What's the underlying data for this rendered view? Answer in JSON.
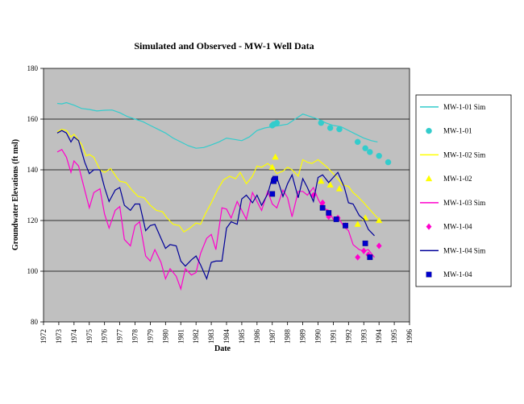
{
  "chart_data": {
    "type": "line",
    "title": "Simulated and Observed - MW-1 Well Data",
    "xlabel": "Date",
    "ylabel": "Groundwater Elevations (ft msl)",
    "xlim": [
      1972,
      1996
    ],
    "ylim": [
      80,
      180
    ],
    "xticks": [
      1972,
      1973,
      1974,
      1975,
      1976,
      1977,
      1978,
      1979,
      1980,
      1981,
      1982,
      1983,
      1984,
      1985,
      1986,
      1987,
      1988,
      1989,
      1990,
      1991,
      1992,
      1993,
      1994,
      1995,
      1996
    ],
    "yticks": [
      80,
      100,
      120,
      140,
      160,
      180
    ],
    "grid": true,
    "legend_position": "right",
    "plot_background": "#c0c0c0",
    "series": [
      {
        "name": "MW-1-01 Sim",
        "kind": "line",
        "color": "#33cccc",
        "x": [
          1972.9,
          1973.2,
          1973.5,
          1974.0,
          1974.5,
          1975.0,
          1975.5,
          1976.0,
          1976.5,
          1977.0,
          1977.5,
          1978.0,
          1978.5,
          1979.0,
          1979.5,
          1980.0,
          1980.5,
          1981.0,
          1981.5,
          1982.0,
          1982.5,
          1983.0,
          1983.5,
          1984.0,
          1984.5,
          1985.0,
          1985.5,
          1986.0,
          1986.5,
          1987.0,
          1987.5,
          1988.0,
          1988.5,
          1989.0,
          1989.5,
          1990.0,
          1990.5,
          1991.0,
          1991.5,
          1992.0,
          1992.5,
          1993.0,
          1993.5,
          1993.9
        ],
        "y": [
          166.2,
          166.0,
          166.5,
          165.5,
          164.2,
          163.8,
          163.2,
          163.5,
          163.6,
          162.5,
          161.0,
          160.0,
          159.0,
          157.5,
          156.0,
          154.5,
          152.5,
          151.0,
          149.5,
          148.5,
          148.8,
          149.8,
          151.0,
          152.5,
          152.0,
          151.5,
          153.0,
          155.5,
          156.5,
          157.0,
          157.5,
          158.0,
          160.0,
          162.0,
          161.0,
          160.0,
          158.5,
          157.5,
          157.0,
          155.5,
          154.0,
          152.5,
          151.5,
          151.0
        ]
      },
      {
        "name": "MW-1-01",
        "kind": "marker",
        "marker": "circle",
        "color": "#33cccc",
        "x": [
          1987.0,
          1987.1,
          1987.3,
          1990.2,
          1990.8,
          1991.4,
          1992.6,
          1993.1,
          1993.4,
          1994.0,
          1994.6
        ],
        "y": [
          157.5,
          158.0,
          158.5,
          158.5,
          156.5,
          156.0,
          151.0,
          148.5,
          147.0,
          145.5,
          143.0
        ]
      },
      {
        "name": "MW-1-02 Sim",
        "kind": "line",
        "color": "#ffff00",
        "x": [
          1972.9,
          1973.2,
          1973.5,
          1973.8,
          1974.0,
          1974.5,
          1974.8,
          1975.0,
          1975.3,
          1975.7,
          1976.0,
          1976.4,
          1976.8,
          1977.0,
          1977.4,
          1977.8,
          1978.2,
          1978.6,
          1979.0,
          1979.4,
          1979.8,
          1980.1,
          1980.5,
          1980.9,
          1981.2,
          1981.6,
          1982.0,
          1982.3,
          1982.6,
          1983.0,
          1983.4,
          1983.8,
          1984.2,
          1984.6,
          1984.9,
          1985.3,
          1985.7,
          1986.0,
          1986.3,
          1986.7,
          1987.0,
          1987.3,
          1987.7,
          1988.0,
          1988.3,
          1988.7,
          1989.0,
          1989.3,
          1989.6,
          1990.0,
          1990.3,
          1990.6,
          1991.0,
          1991.3,
          1991.6,
          1992.0,
          1992.3,
          1992.6,
          1993.0,
          1993.3,
          1993.6,
          1993.9
        ],
        "y": [
          155.0,
          156.0,
          155.5,
          153.0,
          154.0,
          150.0,
          145.5,
          146.0,
          145.0,
          140.0,
          139.0,
          140.5,
          137.0,
          135.5,
          135.0,
          132.0,
          129.5,
          129.0,
          126.0,
          124.0,
          123.5,
          121.0,
          118.5,
          118.0,
          115.5,
          117.0,
          119.0,
          118.5,
          122.5,
          127.0,
          132.0,
          136.0,
          137.5,
          136.5,
          139.0,
          134.5,
          137.5,
          141.5,
          141.0,
          142.5,
          141.0,
          138.5,
          139.5,
          141.0,
          140.0,
          137.5,
          144.0,
          143.0,
          142.5,
          144.0,
          142.5,
          141.0,
          138.5,
          136.5,
          134.0,
          133.5,
          131.0,
          129.5,
          127.0,
          125.0,
          123.0,
          121.0
        ]
      },
      {
        "name": "MW-1-02",
        "kind": "marker",
        "marker": "triangle",
        "color": "#ffff00",
        "x": [
          1987.0,
          1987.2,
          1990.2,
          1990.8,
          1991.4,
          1992.6,
          1993.1,
          1994.0
        ],
        "y": [
          141.0,
          145.0,
          135.5,
          134.0,
          132.5,
          118.5,
          121.0,
          120.0
        ]
      },
      {
        "name": "MW-1-03 Sim",
        "kind": "line",
        "color": "#ff00cc",
        "x": [
          1972.9,
          1973.2,
          1973.5,
          1973.8,
          1974.0,
          1974.3,
          1974.7,
          1975.0,
          1975.3,
          1975.7,
          1976.0,
          1976.3,
          1976.7,
          1977.0,
          1977.3,
          1977.7,
          1978.0,
          1978.3,
          1978.7,
          1979.0,
          1979.3,
          1979.7,
          1980.0,
          1980.3,
          1980.7,
          1981.0,
          1981.3,
          1981.7,
          1982.0,
          1982.3,
          1982.7,
          1983.0,
          1983.3,
          1983.7,
          1984.0,
          1984.3,
          1984.7,
          1985.0,
          1985.3,
          1985.7,
          1986.0,
          1986.3,
          1986.7,
          1987.0,
          1987.3,
          1987.7,
          1988.0,
          1988.3,
          1988.7,
          1989.0,
          1989.3,
          1989.7,
          1990.0,
          1990.3,
          1990.7,
          1991.0,
          1991.3,
          1991.7,
          1992.0,
          1992.3,
          1992.7,
          1993.0,
          1993.3,
          1993.7
        ],
        "y": [
          147.0,
          148.0,
          145.0,
          139.0,
          143.5,
          141.5,
          132.0,
          125.0,
          131.0,
          132.5,
          122.5,
          117.0,
          124.0,
          125.5,
          112.5,
          110.0,
          118.0,
          119.5,
          106.0,
          104.0,
          108.5,
          103.5,
          97.0,
          101.0,
          98.0,
          93.0,
          101.0,
          98.5,
          99.5,
          107.0,
          113.0,
          114.5,
          108.5,
          125.0,
          124.5,
          121.0,
          127.5,
          124.0,
          120.5,
          131.0,
          127.5,
          124.0,
          131.5,
          126.5,
          125.0,
          132.0,
          129.0,
          121.5,
          131.5,
          131.5,
          130.0,
          133.0,
          128.5,
          125.0,
          124.0,
          120.5,
          121.5,
          117.5,
          116.0,
          110.5,
          108.5,
          108.0,
          108.5,
          105.5
        ]
      },
      {
        "name": "MW-1-04",
        "kind": "marker",
        "marker": "diamond",
        "color": "#ff00cc",
        "x": [
          1989.7,
          1990.3,
          1990.7,
          1991.3,
          1991.8,
          1992.6,
          1993.0,
          1993.3,
          1994.0
        ],
        "y": [
          130.0,
          127.0,
          121.5,
          121.0,
          118.0,
          105.5,
          108.0,
          106.5,
          110.0
        ]
      },
      {
        "name": "MW-1-04 Sim",
        "kind": "line",
        "color": "#000099",
        "x": [
          1972.9,
          1973.2,
          1973.5,
          1973.8,
          1974.0,
          1974.3,
          1974.7,
          1975.0,
          1975.3,
          1975.7,
          1976.0,
          1976.3,
          1976.7,
          1977.0,
          1977.3,
          1977.7,
          1978.0,
          1978.3,
          1978.7,
          1979.0,
          1979.3,
          1979.7,
          1980.0,
          1980.3,
          1980.7,
          1981.0,
          1981.3,
          1981.7,
          1982.0,
          1982.3,
          1982.7,
          1983.0,
          1983.3,
          1983.7,
          1984.0,
          1984.3,
          1984.7,
          1985.0,
          1985.3,
          1985.7,
          1986.0,
          1986.3,
          1986.7,
          1987.0,
          1987.3,
          1987.7,
          1988.0,
          1988.3,
          1988.7,
          1989.0,
          1989.3,
          1989.7,
          1990.0,
          1990.3,
          1990.7,
          1991.0,
          1991.3,
          1991.7,
          1992.0,
          1992.3,
          1992.7,
          1993.0,
          1993.3,
          1993.7
        ],
        "y": [
          154.5,
          155.5,
          154.5,
          151.0,
          153.0,
          151.5,
          143.0,
          138.5,
          140.0,
          140.0,
          133.0,
          127.5,
          132.0,
          133.0,
          126.0,
          124.0,
          126.5,
          126.5,
          116.0,
          118.0,
          118.5,
          113.0,
          109.0,
          110.5,
          110.0,
          104.0,
          102.0,
          104.5,
          106.0,
          102.5,
          97.0,
          103.5,
          104.0,
          104.0,
          117.0,
          119.5,
          118.5,
          128.5,
          130.0,
          127.0,
          130.0,
          126.0,
          130.5,
          137.0,
          137.0,
          129.5,
          134.5,
          138.0,
          129.0,
          136.5,
          133.0,
          127.5,
          137.0,
          138.0,
          135.0,
          137.0,
          139.0,
          133.5,
          127.0,
          126.5,
          122.0,
          120.5,
          116.5,
          114.0
        ]
      },
      {
        "name": "MW-1-04",
        "kind": "marker",
        "marker": "square",
        "color": "#0000cc",
        "x": [
          1987.0,
          1987.1,
          1987.2,
          1990.3,
          1990.7,
          1991.2,
          1991.8,
          1993.1,
          1993.4
        ],
        "y": [
          130.5,
          135.5,
          136.5,
          125.0,
          123.0,
          120.5,
          118.0,
          111.0,
          105.5
        ]
      }
    ]
  }
}
